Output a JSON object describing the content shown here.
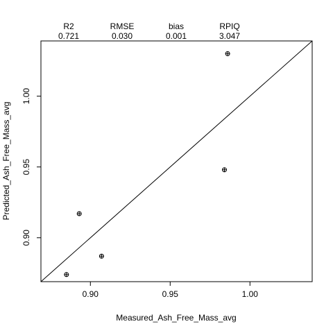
{
  "chart_data": {
    "type": "scatter",
    "title": "",
    "xlabel": "Measured_Ash_Free_Mass_avg",
    "ylabel": "Predicted_Ash_Free_Mass_avg",
    "xlim": [
      0.869,
      1.039
    ],
    "ylim": [
      0.869,
      1.039
    ],
    "x_ticks": [
      {
        "value": 0.9,
        "label": "0.90"
      },
      {
        "value": 0.95,
        "label": "0.95"
      },
      {
        "value": 1.0,
        "label": "1.00"
      }
    ],
    "y_ticks": [
      {
        "value": 0.9,
        "label": "0.90"
      },
      {
        "value": 0.95,
        "label": "0.95"
      },
      {
        "value": 1.0,
        "label": "1.00"
      }
    ],
    "grid": false,
    "reference_line": "y = x",
    "marker": "circle-plus",
    "points": [
      {
        "x": 0.885,
        "y": 0.874
      },
      {
        "x": 0.893,
        "y": 0.917
      },
      {
        "x": 0.907,
        "y": 0.887
      },
      {
        "x": 0.984,
        "y": 0.948
      },
      {
        "x": 0.986,
        "y": 1.03
      }
    ],
    "stats": [
      {
        "label": "R2",
        "value": "0.721"
      },
      {
        "label": "RMSE",
        "value": "0.030"
      },
      {
        "label": "bias",
        "value": "0.001"
      },
      {
        "label": "RPIQ",
        "value": "3.047"
      }
    ]
  }
}
